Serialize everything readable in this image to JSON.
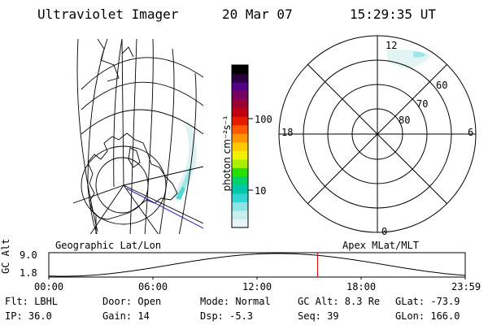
{
  "header": {
    "instrument": "Ultraviolet Imager",
    "date": "20 Mar 07",
    "time": "15:29:35 UT"
  },
  "colorbar": {
    "unit_label": "photon cm⁻²s⁻¹",
    "ticks": [
      "100",
      "10"
    ],
    "colors": [
      "#e6f6f6",
      "#c8eeee",
      "#8fe2e2",
      "#33d4d4",
      "#00c8a8",
      "#00d26a",
      "#28e000",
      "#a6f000",
      "#f0f000",
      "#ffc800",
      "#ff9600",
      "#ff5a00",
      "#e61c00",
      "#c00010",
      "#9a0030",
      "#7a0060",
      "#560088",
      "#280040",
      "#000000"
    ]
  },
  "polar_plot": {
    "mlt_labels": [
      "12",
      "18",
      "6",
      "0"
    ],
    "lat_labels": [
      "60",
      "70",
      "80"
    ]
  },
  "map_labels": {
    "left": "Geographic Lat/Lon",
    "right": "Apex MLat/MLT"
  },
  "timeline": {
    "axis_label": "GC Alt",
    "y_ticks": [
      "9.0",
      "1.8"
    ],
    "x_ticks": [
      "00:00",
      "06:00",
      "12:00",
      "18:00",
      "23:59"
    ],
    "current_time_hours": 15.49
  },
  "info": {
    "flt": "Flt: LBHL",
    "ip": "IP: 36.0",
    "door": "Door: Open",
    "gain": "Gain: 14",
    "mode": "Mode: Normal",
    "dsp": "Dsp:   -5.3",
    "gc_alt": "GC Alt: 8.3 Re",
    "seq": "Seq: 39",
    "glat": "GLat: -73.9",
    "glon": "GLon: 166.0"
  }
}
